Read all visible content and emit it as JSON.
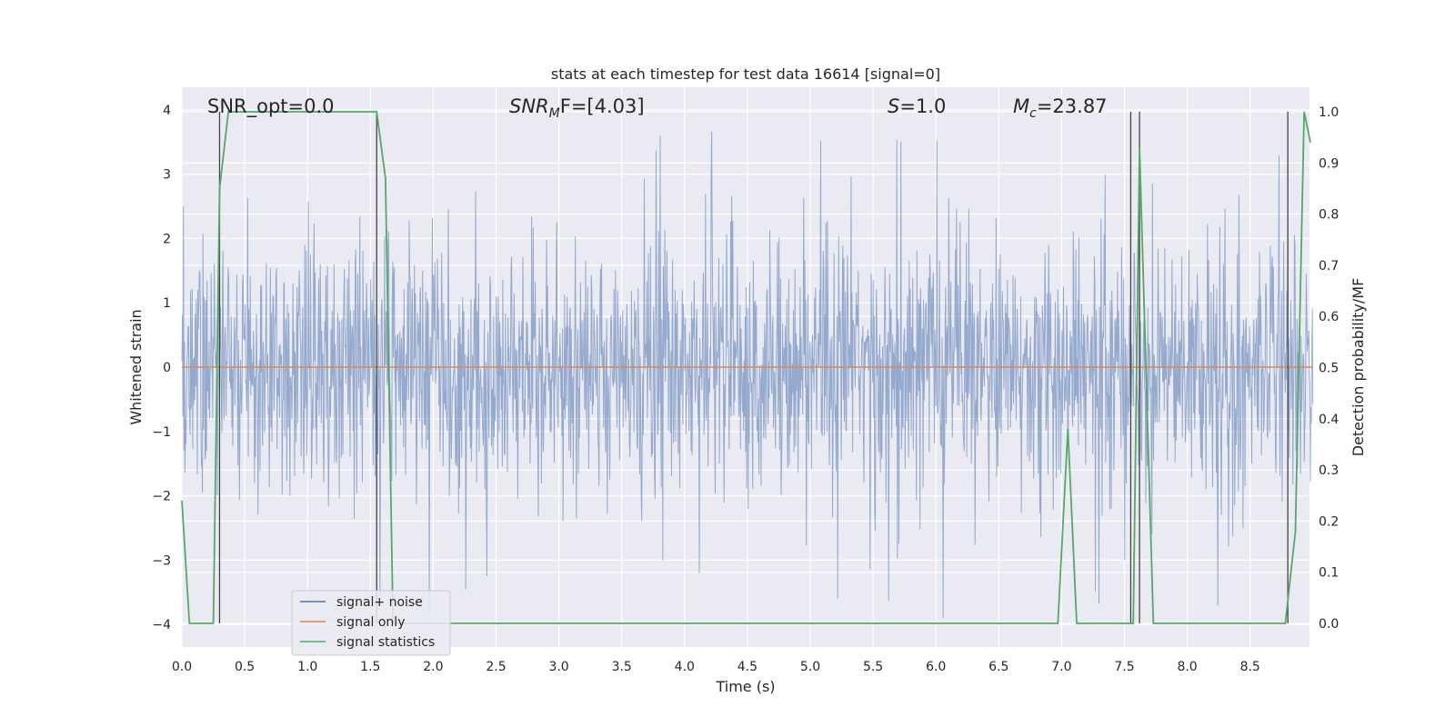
{
  "chart_data": {
    "type": "line",
    "title": "stats at each timestep for test data 16614 [signal=0]",
    "xlabel": "Time (s)",
    "ylabel": "Whitened strain",
    "y2label": "Detection probability/MF",
    "xlim": [
      0.0,
      9.0
    ],
    "ylim": [
      -4.3,
      4.4
    ],
    "y2lim": [
      -0.045,
      1.045
    ],
    "xticks": [
      "0.0",
      "0.5",
      "1.0",
      "1.5",
      "2.0",
      "2.5",
      "3.0",
      "3.5",
      "4.0",
      "4.5",
      "5.0",
      "5.5",
      "6.0",
      "6.5",
      "7.0",
      "7.5",
      "8.0",
      "8.5"
    ],
    "yticks": [
      "4",
      "3",
      "2",
      "1",
      "0",
      "−1",
      "−2",
      "−3",
      "−4"
    ],
    "y2ticks": [
      "1.0",
      "0.9",
      "0.8",
      "0.7",
      "0.6",
      "0.5",
      "0.4",
      "0.3",
      "0.2",
      "0.1",
      "0.0"
    ],
    "grid": true,
    "annotations": {
      "snr_opt": "SNR_opt=0.0",
      "snr_mf_main": "SNR",
      "snr_mf_sub": "M",
      "snr_mf_rest": "F=[4.03]",
      "s_main": "S",
      "s_rest": "=1.0",
      "mc_main": "M",
      "mc_sub": "c",
      "mc_rest": "=23.87"
    },
    "legend": {
      "placement": "lower-left",
      "entries": [
        "signal+ noise",
        "signal only",
        "signal statistics"
      ]
    },
    "series": [
      {
        "name": "signal+ noise",
        "color": "#4c72b0",
        "noise_envelope": {
          "typical_amplitude": 1.6,
          "max_peak": 3.7,
          "min_trough": -3.9
        }
      },
      {
        "name": "signal only",
        "color": "#dd8452",
        "x": [
          0.0,
          9.0
        ],
        "y": [
          0.0,
          0.0
        ]
      },
      {
        "name": "signal statistics",
        "color": "#55a868",
        "axis": "right",
        "x": [
          0.0,
          0.06,
          0.25,
          0.3,
          0.37,
          1.2,
          1.55,
          1.62,
          1.68,
          6.5,
          6.97,
          7.05,
          7.12,
          7.52,
          7.57,
          7.62,
          7.73,
          8.78,
          8.86,
          8.93,
          8.98
        ],
        "y": [
          0.24,
          0.0,
          0.0,
          0.85,
          1.0,
          1.0,
          1.0,
          0.87,
          0.0,
          0.0,
          0.0,
          0.38,
          0.0,
          0.0,
          0.0,
          0.93,
          0.0,
          0.0,
          0.18,
          1.0,
          0.94
        ]
      }
    ],
    "vlines_x": [
      0.3,
      1.55,
      7.55,
      7.62,
      8.8
    ]
  }
}
